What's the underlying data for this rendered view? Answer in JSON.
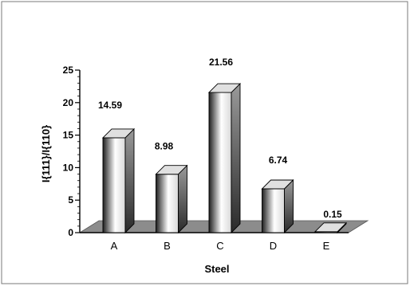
{
  "chart_data": {
    "type": "bar",
    "style": "3d",
    "categories": [
      "A",
      "B",
      "C",
      "D",
      "E"
    ],
    "values": [
      14.59,
      8.98,
      21.56,
      6.74,
      0.15
    ],
    "data_labels": [
      "14.59",
      "8.98",
      "21.56",
      "6.74",
      "0.15"
    ],
    "xlabel": "Steel",
    "ylabel": "I{111}/I{110}",
    "ylim": [
      0,
      25
    ],
    "yticks": [
      0,
      5,
      10,
      15,
      20,
      25
    ],
    "ytick_labels": [
      "0",
      "5",
      "10",
      "15",
      "20",
      "25"
    ],
    "grid": false,
    "legend": "none",
    "colors": {
      "bar_light": "#ffffff",
      "bar_dark": "#1e1e1e",
      "floor": "#8c8c8c",
      "border": "#7a7a7a"
    }
  }
}
